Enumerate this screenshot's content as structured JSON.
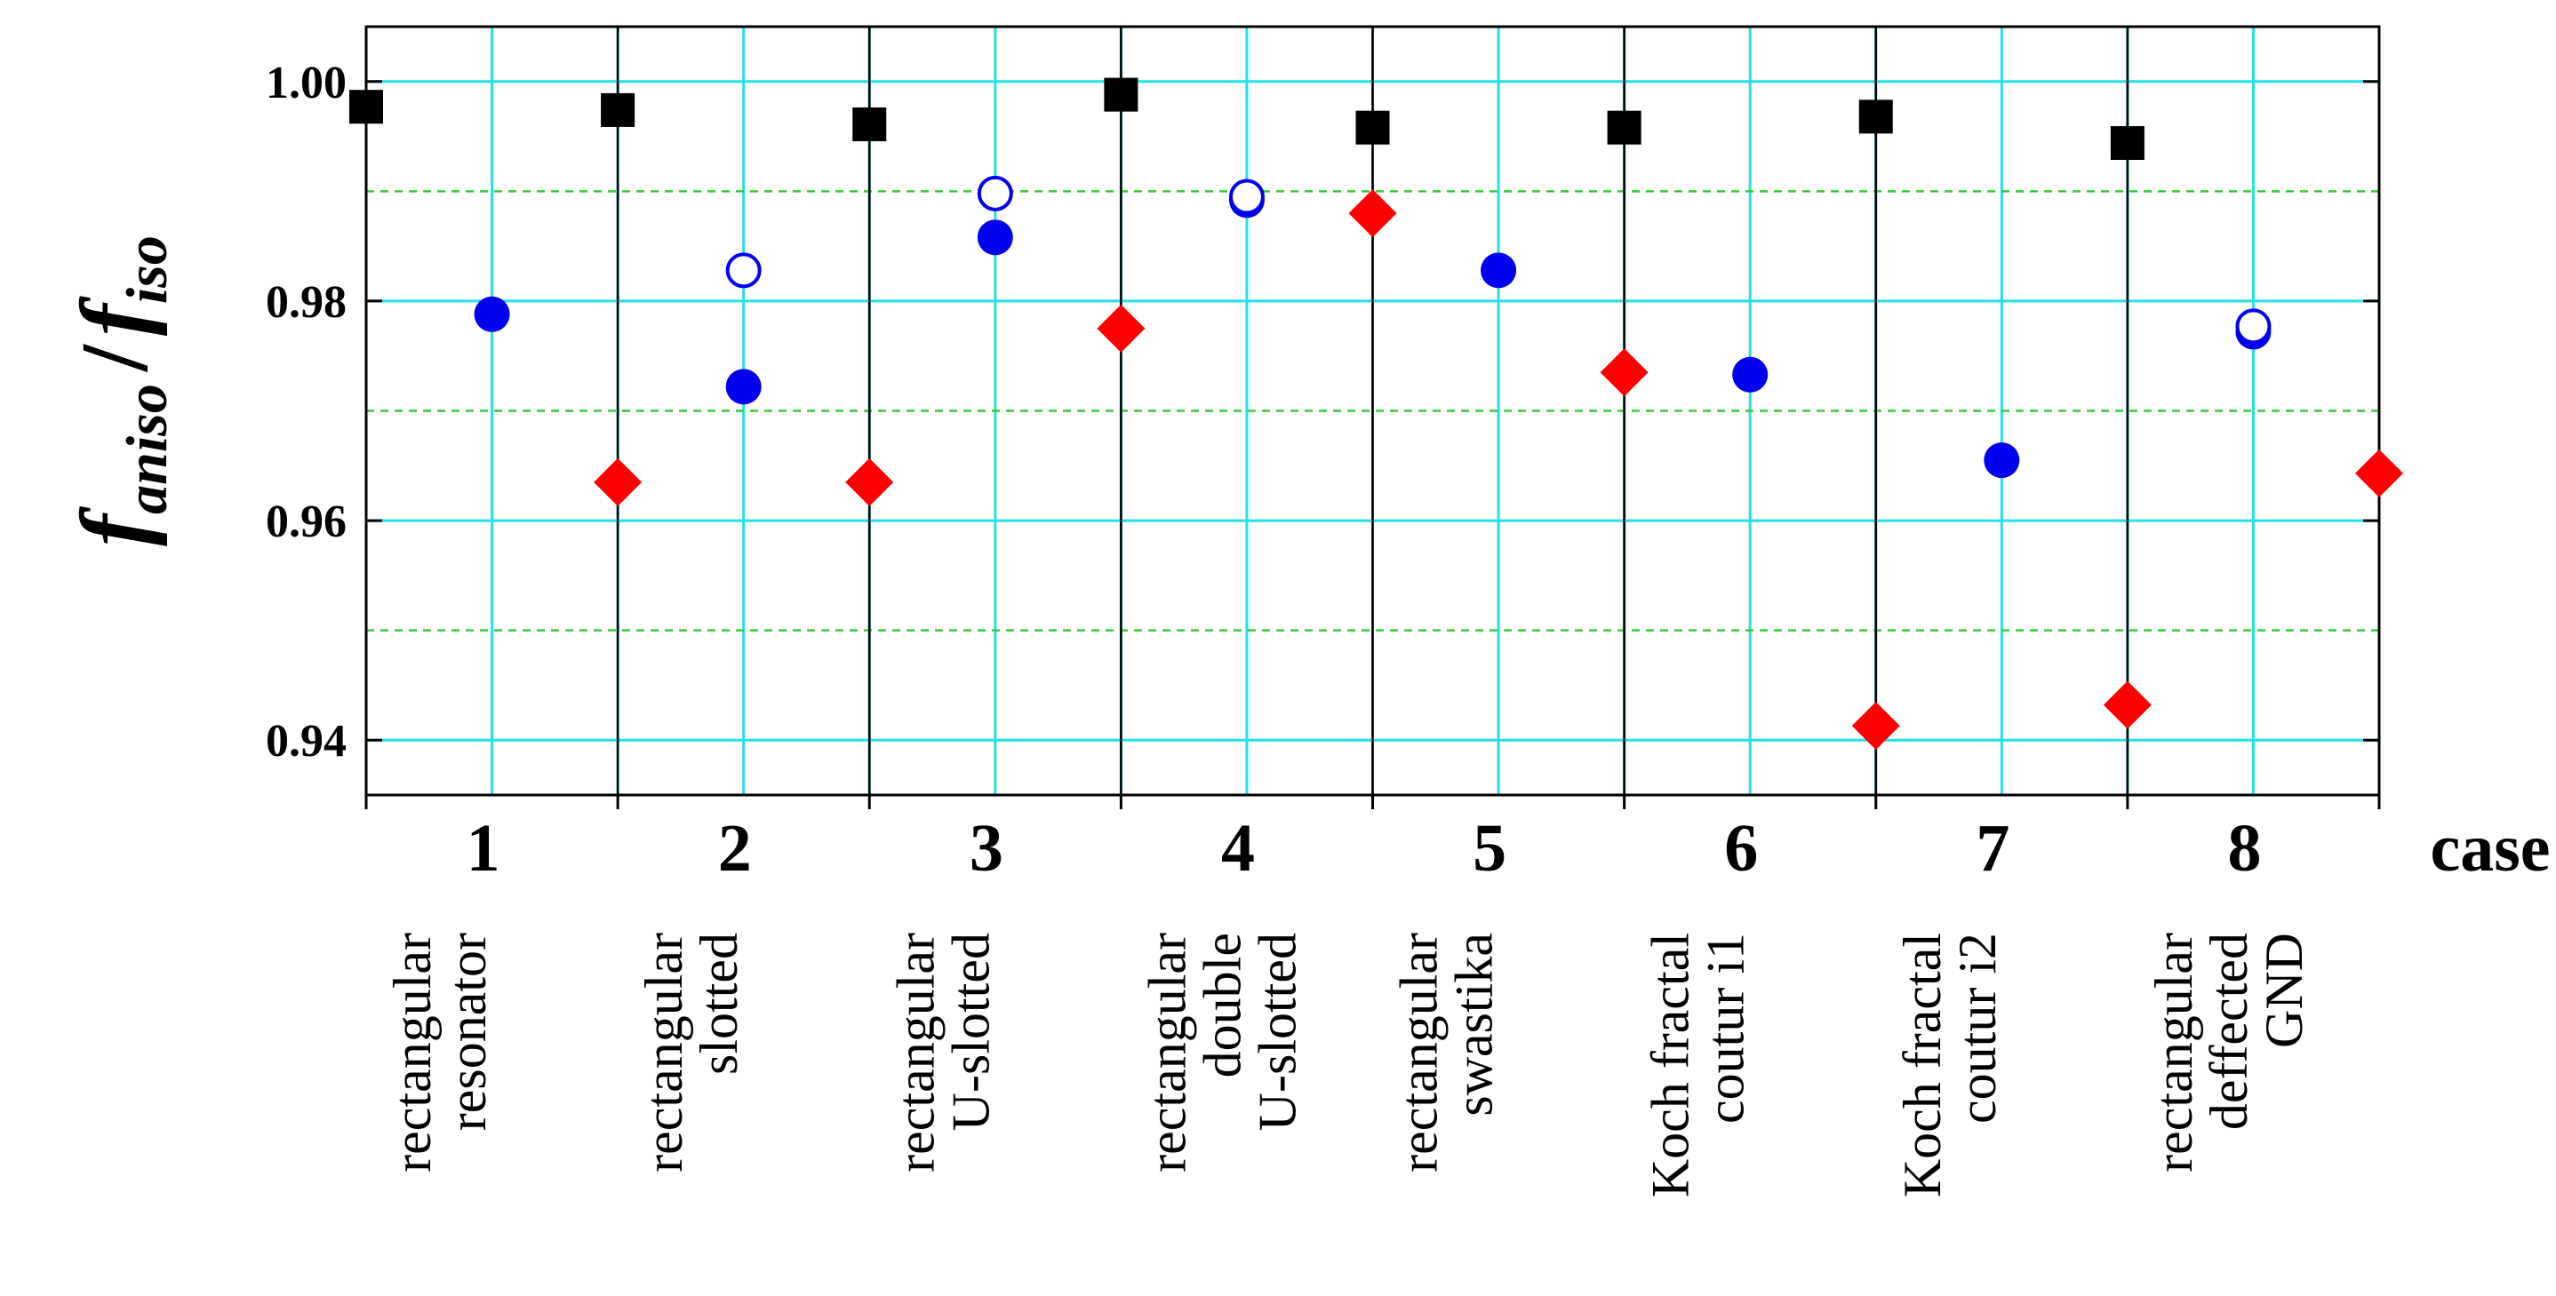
{
  "chart_data": {
    "type": "scatter",
    "ylabel_parts": {
      "main1": "f",
      "sub1": "aniso",
      "slash": "/",
      "main2": "f",
      "sub2": "iso"
    },
    "xlabel": "case",
    "ylim": [
      0.935,
      1.005
    ],
    "yticks": [
      0.94,
      0.96,
      0.98,
      1.0
    ],
    "ytick_labels": [
      "0.94",
      "0.96",
      "0.98",
      "1.00"
    ],
    "minor_y_grid": [
      0.95,
      0.97,
      0.99
    ],
    "grid": true,
    "categories": [
      "1",
      "2",
      "3",
      "4",
      "5",
      "6",
      "7",
      "8"
    ],
    "descriptions": [
      [
        "rectangular",
        "resonator"
      ],
      [
        "rectangular",
        "slotted"
      ],
      [
        "rectangular",
        "U-slotted"
      ],
      [
        "rectangular",
        "double",
        "U-slotted"
      ],
      [
        "rectangular",
        "swastika"
      ],
      [
        "Koch fractal",
        "coutur i1"
      ],
      [
        "Koch fractal",
        "coutur i2"
      ],
      [
        "rectangular",
        "deffected",
        "GND"
      ]
    ],
    "series": [
      {
        "marker": "square",
        "color": "#000000",
        "offset": -0.25,
        "values": [
          0.9977,
          0.9974,
          0.9961,
          0.9988,
          0.9958,
          0.9958,
          0.9968,
          0.9944
        ]
      },
      {
        "marker": "circle-filled",
        "color": "#0000ee",
        "offset": 0.0,
        "values": [
          0.9788,
          0.9722,
          0.9858,
          0.9892,
          0.9828,
          0.9733,
          0.9655,
          0.9772
        ]
      },
      {
        "marker": "circle-open",
        "color": "#0000ee",
        "offset": 0.0,
        "values": [
          null,
          0.9828,
          0.9898,
          0.9895,
          null,
          null,
          null,
          0.9777
        ]
      },
      {
        "marker": "diamond",
        "color": "#ff0000",
        "offset": 0.25,
        "values": [
          0.9635,
          0.9635,
          0.9775,
          0.988,
          0.9735,
          0.9413,
          0.9432,
          0.9643
        ]
      }
    ]
  }
}
